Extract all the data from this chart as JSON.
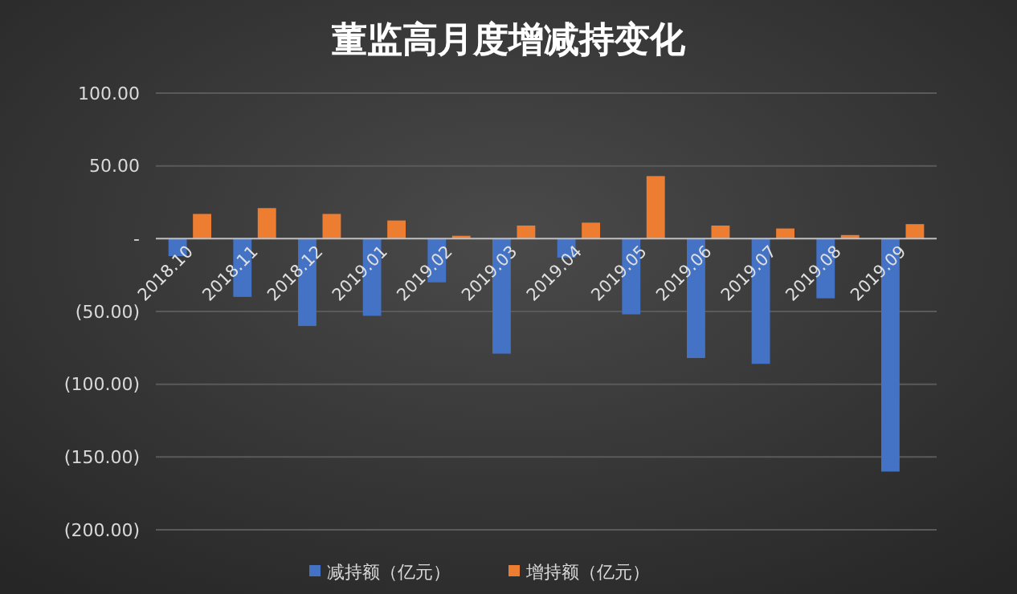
{
  "chart_data": {
    "type": "bar",
    "title": "董监高月度增减持变化",
    "categories": [
      "2018.10",
      "2018.11",
      "2018.12",
      "2019.01",
      "2019.02",
      "2019.03",
      "2019.04",
      "2019.05",
      "2019.06",
      "2019.07",
      "2019.08",
      "2019.09"
    ],
    "series": [
      {
        "name": "减持额（亿元）",
        "color": "#4472c4",
        "values": [
          -12,
          -40,
          -60,
          -53,
          -30,
          -79,
          -13,
          -52,
          -82,
          -86,
          -41,
          -160
        ]
      },
      {
        "name": "增持额（亿元）",
        "color": "#ed7d31",
        "values": [
          17,
          21,
          17,
          12.5,
          2,
          9,
          11,
          43,
          9,
          7,
          2.5,
          10
        ]
      }
    ],
    "ylim": [
      -200,
      100
    ],
    "yticks": [
      {
        "value": 100,
        "label": "100.00"
      },
      {
        "value": 50,
        "label": "50.00"
      },
      {
        "value": 0,
        "label": "-"
      },
      {
        "value": -50,
        "label": "(50.00)"
      },
      {
        "value": -100,
        "label": "(100.00)"
      },
      {
        "value": -150,
        "label": "(150.00)"
      },
      {
        "value": -200,
        "label": "(200.00)"
      }
    ],
    "grid": "y",
    "legend": "bottom"
  }
}
